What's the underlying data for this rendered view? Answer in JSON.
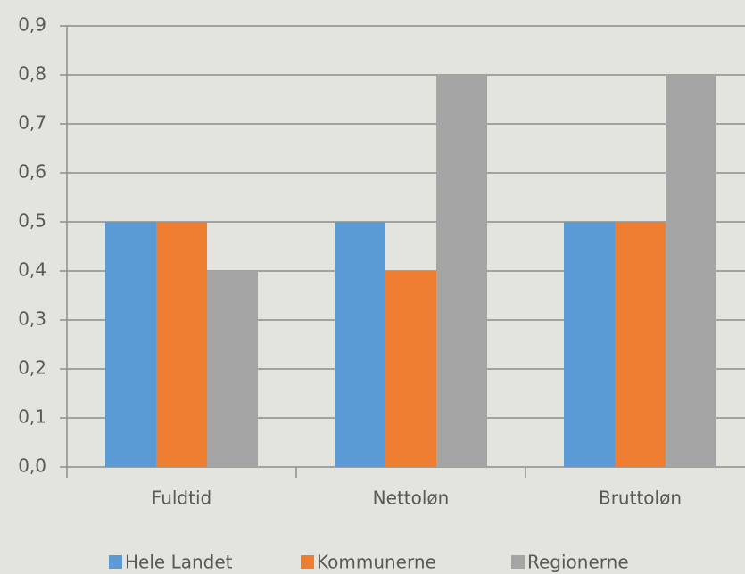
{
  "chart_data": {
    "type": "bar",
    "categories": [
      "Fuldtid",
      "Nettoløn",
      "Bruttoløn"
    ],
    "series": [
      {
        "name": "Hele Landet",
        "color": "#5b9bd5",
        "values": [
          0.5,
          0.5,
          0.5
        ]
      },
      {
        "name": "Kommunerne",
        "color": "#ed7d31",
        "values": [
          0.5,
          0.4,
          0.5
        ]
      },
      {
        "name": "Regionerne",
        "color": "#a5a5a5",
        "values": [
          0.4,
          0.8,
          0.8
        ]
      }
    ],
    "ylim": [
      0,
      0.9
    ],
    "yticks": [
      {
        "value": 0,
        "label": "0,0"
      },
      {
        "value": 0.1,
        "label": "0,1"
      },
      {
        "value": 0.2,
        "label": "0,2"
      },
      {
        "value": 0.3,
        "label": "0,3"
      },
      {
        "value": 0.4,
        "label": "0,4"
      },
      {
        "value": 0.5,
        "label": "0,5"
      },
      {
        "value": 0.6,
        "label": "0,6"
      },
      {
        "value": 0.7,
        "label": "0,7"
      },
      {
        "value": 0.8,
        "label": "0,8"
      },
      {
        "value": 0.9,
        "label": "0,9"
      }
    ],
    "grid": true,
    "legend": "bottom"
  }
}
